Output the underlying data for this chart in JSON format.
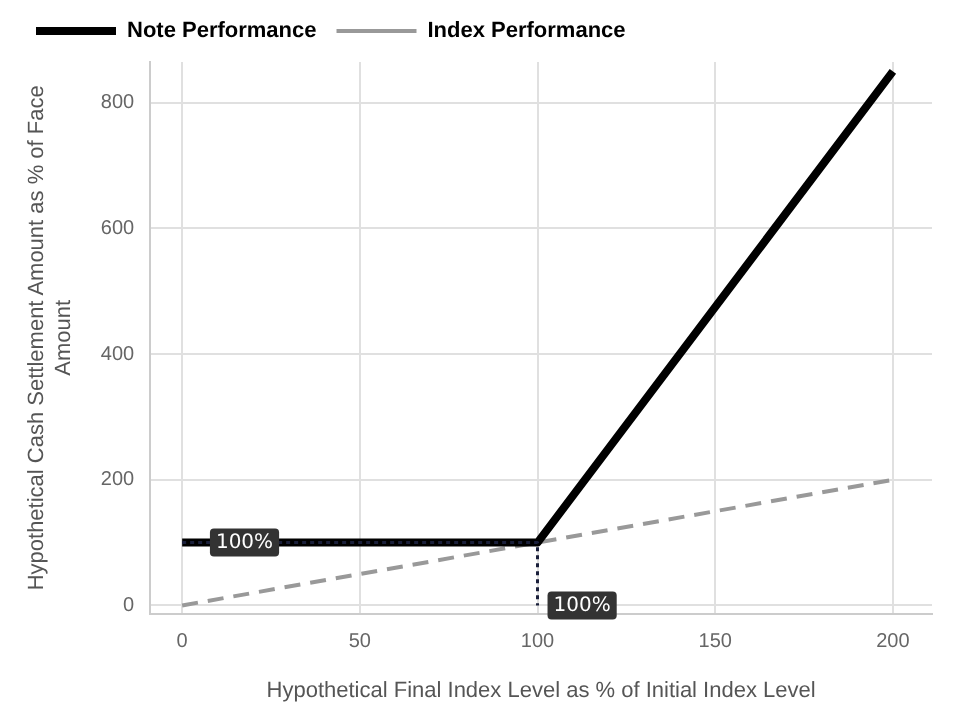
{
  "chart_data": {
    "type": "line",
    "xlabel": "Hypothetical Final Index Level as % of Initial Index Level",
    "ylabel": "Hypothetical Cash Settlement Amount as % of Face Amount",
    "xlim": [
      -9,
      211
    ],
    "xticks": [
      0,
      50,
      100,
      150,
      200
    ],
    "ylim": [
      -13,
      865
    ],
    "yticks": [
      0,
      200,
      400,
      600,
      800
    ],
    "grid": true,
    "legend": "top left",
    "marker": "none",
    "series": [
      {
        "name": "Note Performance",
        "color": "#000000",
        "x": [
          0,
          100,
          200
        ],
        "values": [
          100,
          100,
          850
        ],
        "line_style": "solid"
      },
      {
        "name": "Index Performance",
        "color": "#999999",
        "x": [
          0,
          200
        ],
        "values": [
          0,
          200
        ],
        "line_style": "dashed"
      },
      {
        "color": "#1a1f3a",
        "x": [
          0,
          100,
          100
        ],
        "values": [
          100,
          100,
          0
        ],
        "line_style": "dotted"
      }
    ],
    "annotations": [
      {
        "text": "100%",
        "x": 5,
        "y": 100
      },
      {
        "text": "100%",
        "x": 100,
        "y": 0
      }
    ]
  }
}
